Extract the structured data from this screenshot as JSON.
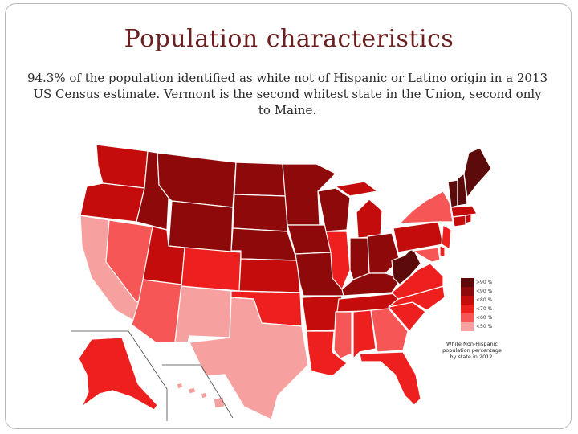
{
  "slide": {
    "title": "Population characteristics",
    "subtitle": "94.3% of the population identified as  white not of Hispanic or Latino origin  in a 2013 US Census estimate. Vermont is the second whitest state in the Union, second only to  Maine."
  },
  "map": {
    "note": "White Non-Hispanic population percentage by state in 2012.",
    "legend": [
      {
        "label": ">90 %",
        "color": "#5c0a0a"
      },
      {
        "label": "<90 %",
        "color": "#8e0a0a"
      },
      {
        "label": "<80 %",
        "color": "#c40c0c"
      },
      {
        "label": "<70 %",
        "color": "#ee1f1f"
      },
      {
        "label": "<60 %",
        "color": "#f75656"
      },
      {
        "label": "<50 %",
        "color": "#f7a0a0"
      }
    ],
    "states": [
      {
        "name": "WA",
        "color": "#c40c0c"
      },
      {
        "name": "OR",
        "color": "#c40c0c"
      },
      {
        "name": "CA",
        "color": "#f7a0a0"
      },
      {
        "name": "NV",
        "color": "#f75656"
      },
      {
        "name": "ID",
        "color": "#8e0a0a"
      },
      {
        "name": "MT",
        "color": "#8e0a0a"
      },
      {
        "name": "WY",
        "color": "#8e0a0a"
      },
      {
        "name": "UT",
        "color": "#c40c0c"
      },
      {
        "name": "AZ",
        "color": "#f75656"
      },
      {
        "name": "CO",
        "color": "#ee1f1f"
      },
      {
        "name": "NM",
        "color": "#f7a0a0"
      },
      {
        "name": "ND",
        "color": "#8e0a0a"
      },
      {
        "name": "SD",
        "color": "#8e0a0a"
      },
      {
        "name": "NE",
        "color": "#8e0a0a"
      },
      {
        "name": "KS",
        "color": "#c40c0c"
      },
      {
        "name": "OK",
        "color": "#ee1f1f"
      },
      {
        "name": "TX",
        "color": "#f7a0a0"
      },
      {
        "name": "MN",
        "color": "#8e0a0a"
      },
      {
        "name": "IA",
        "color": "#8e0a0a"
      },
      {
        "name": "MO",
        "color": "#8e0a0a"
      },
      {
        "name": "AR",
        "color": "#c40c0c"
      },
      {
        "name": "LA",
        "color": "#ee1f1f"
      },
      {
        "name": "WI",
        "color": "#8e0a0a"
      },
      {
        "name": "IL",
        "color": "#ee1f1f"
      },
      {
        "name": "MI",
        "color": "#c40c0c"
      },
      {
        "name": "IN",
        "color": "#8e0a0a"
      },
      {
        "name": "OH",
        "color": "#8e0a0a"
      },
      {
        "name": "KY",
        "color": "#8e0a0a"
      },
      {
        "name": "TN",
        "color": "#c40c0c"
      },
      {
        "name": "MS",
        "color": "#f75656"
      },
      {
        "name": "AL",
        "color": "#ee1f1f"
      },
      {
        "name": "GA",
        "color": "#f75656"
      },
      {
        "name": "FL",
        "color": "#ee1f1f"
      },
      {
        "name": "SC",
        "color": "#ee1f1f"
      },
      {
        "name": "NC",
        "color": "#ee1f1f"
      },
      {
        "name": "VA",
        "color": "#ee1f1f"
      },
      {
        "name": "WV",
        "color": "#5c0a0a"
      },
      {
        "name": "PA",
        "color": "#c40c0c"
      },
      {
        "name": "NY",
        "color": "#f75656"
      },
      {
        "name": "VT",
        "color": "#5c0a0a"
      },
      {
        "name": "NH",
        "color": "#5c0a0a"
      },
      {
        "name": "ME",
        "color": "#5c0a0a"
      },
      {
        "name": "MA",
        "color": "#c40c0c"
      },
      {
        "name": "CT",
        "color": "#c40c0c"
      },
      {
        "name": "RI",
        "color": "#c40c0c"
      },
      {
        "name": "NJ",
        "color": "#ee1f1f"
      },
      {
        "name": "DE",
        "color": "#ee1f1f"
      },
      {
        "name": "MD",
        "color": "#f75656"
      },
      {
        "name": "AK",
        "color": "#ee1f1f"
      },
      {
        "name": "HI",
        "color": "#f7a0a0"
      }
    ]
  }
}
